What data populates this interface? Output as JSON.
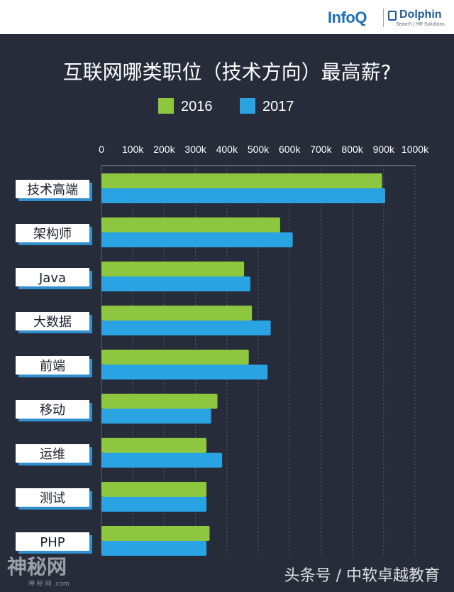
{
  "brand": {
    "infoq": "InfoQ",
    "dolphin": "Dolphin",
    "dolphin_sub": "Search | HR Solutions"
  },
  "watermark": {
    "text": "神秘网",
    "url": "神 秘 网 .com"
  },
  "source": "头条号 / 中软卓越教育",
  "colors": {
    "background": "#262c3a",
    "series_2016": "#8dc63f",
    "series_2017": "#29a3e1",
    "label_box": "#ffffff",
    "label_shadow": "#2f8fcf"
  },
  "chart_data": {
    "type": "bar",
    "orientation": "horizontal",
    "title": "互联网哪类职位（技术方向）最高薪?",
    "categories": [
      "技术高端",
      "架构师",
      "Java",
      "大数据",
      "前端",
      "移动",
      "运维",
      "测试",
      "PHP"
    ],
    "series": [
      {
        "name": "2016",
        "values": [
          895000,
          570000,
          455000,
          480000,
          470000,
          370000,
          335000,
          335000,
          345000
        ]
      },
      {
        "name": "2017",
        "values": [
          905000,
          610000,
          475000,
          540000,
          530000,
          350000,
          385000,
          335000,
          335000
        ]
      }
    ],
    "x_ticks": [
      "0",
      "100k",
      "200k",
      "300k",
      "400k",
      "500k",
      "600k",
      "700k",
      "800k",
      "900k",
      "1000k"
    ],
    "xlim": [
      0,
      1000000
    ],
    "grid": true,
    "legend_position": "top-center"
  }
}
